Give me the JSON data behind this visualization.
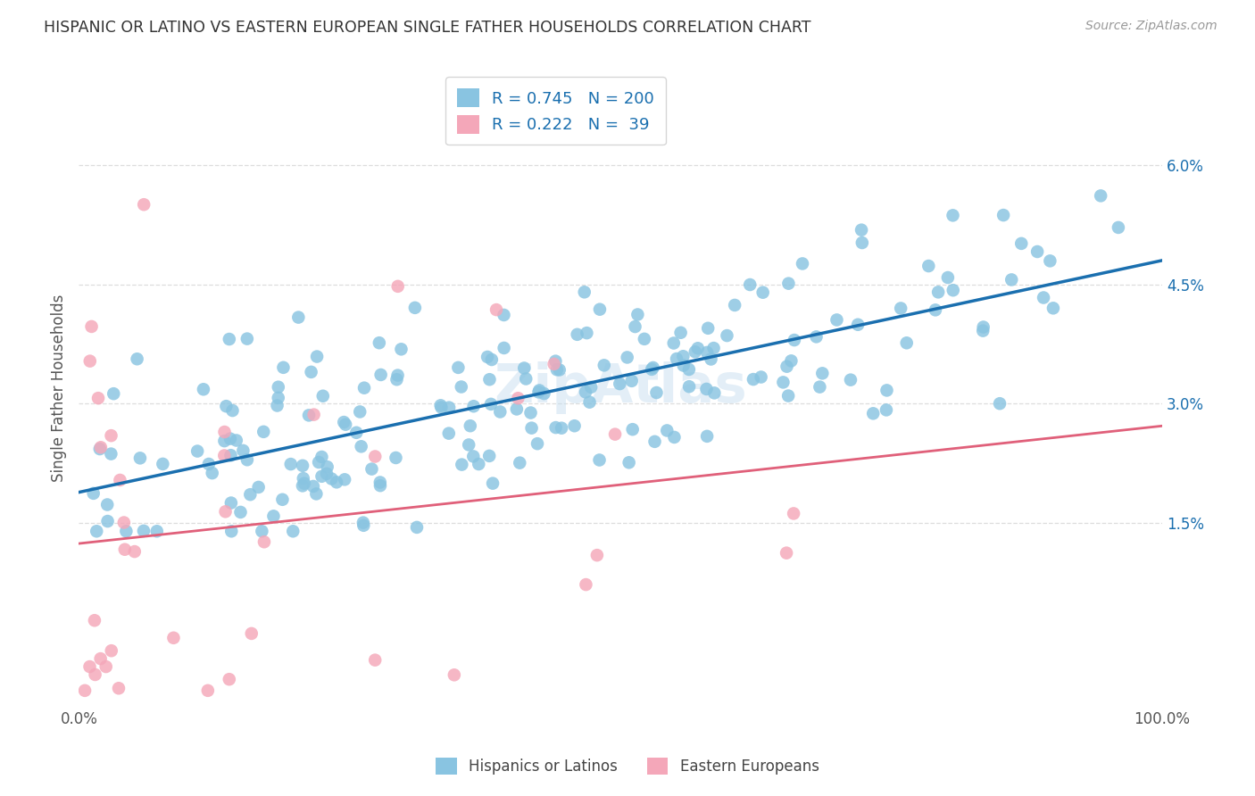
{
  "title": "HISPANIC OR LATINO VS EASTERN EUROPEAN SINGLE FATHER HOUSEHOLDS CORRELATION CHART",
  "source": "Source: ZipAtlas.com",
  "ylabel_label": "Single Father Households",
  "ylabel_values": [
    0.015,
    0.03,
    0.045,
    0.06
  ],
  "ylabel_ticks": [
    "1.5%",
    "3.0%",
    "4.5%",
    "6.0%"
  ],
  "xlim": [
    0.0,
    1.0
  ],
  "ylim": [
    -0.008,
    0.072
  ],
  "blue_R": 0.745,
  "blue_N": 200,
  "pink_R": 0.222,
  "pink_N": 39,
  "blue_color": "#89c4e1",
  "pink_color": "#f4a7b9",
  "blue_line_color": "#1a6faf",
  "pink_line_color": "#e0607a",
  "blue_dash_color": "#b8d8ec",
  "pink_dash_color": "#f4a7b9",
  "title_color": "#333333",
  "watermark": "ZipAtlas",
  "grid_color": "#dddddd",
  "background_color": "#ffffff",
  "legend_text_color": "#1a6faf",
  "axis_label_color": "#555555",
  "right_tick_color": "#1a6faf",
  "legend_label_blue": "Hispanics or Latinos",
  "legend_label_pink": "Eastern Europeans"
}
